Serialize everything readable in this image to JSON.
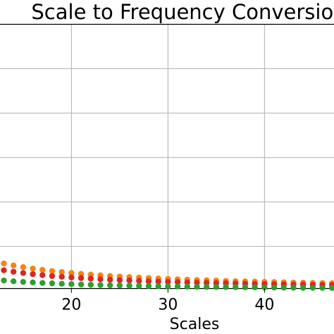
{
  "chart_data": {
    "type": "scatter",
    "title": "Scale to Frequency Conversion",
    "xlabel": "Scales",
    "ylabel": "",
    "xlim": [
      12.6,
      47.2
    ],
    "ylim": [
      0.005,
      0.6
    ],
    "x_ticks": [
      20,
      30,
      40
    ],
    "y_gridlines": [
      0.1,
      0.2,
      0.3,
      0.4,
      0.5,
      0.6
    ],
    "grid": true,
    "legend": "none",
    "series": [
      {
        "color": "#ff7f0e",
        "x": [
          13,
          14,
          15,
          16,
          17,
          18,
          19,
          20,
          21,
          22,
          23,
          24,
          25,
          26,
          27,
          28,
          29,
          30,
          31,
          32,
          33,
          34,
          35,
          36,
          37,
          38,
          39,
          40,
          41,
          42,
          43,
          44,
          45,
          46,
          47
        ],
        "y": [
          0.0615,
          0.0571,
          0.0533,
          0.05,
          0.0471,
          0.0444,
          0.0421,
          0.04,
          0.0381,
          0.0364,
          0.0348,
          0.0333,
          0.032,
          0.0308,
          0.0296,
          0.0286,
          0.0276,
          0.0267,
          0.0258,
          0.025,
          0.0242,
          0.0235,
          0.0229,
          0.0222,
          0.0216,
          0.0211,
          0.0205,
          0.02,
          0.0195,
          0.019,
          0.0186,
          0.0182,
          0.0178,
          0.0174,
          0.017
        ]
      },
      {
        "color": "#d62728",
        "x": [
          13,
          14,
          15,
          16,
          17,
          18,
          19,
          20,
          21,
          22,
          23,
          24,
          25,
          26,
          27,
          28,
          29,
          30,
          31,
          32,
          33,
          34,
          35,
          36,
          37,
          38,
          39,
          40,
          41,
          42,
          43,
          44,
          45,
          46,
          47
        ],
        "y": [
          0.0462,
          0.0429,
          0.04,
          0.0375,
          0.0353,
          0.0333,
          0.0316,
          0.03,
          0.0286,
          0.0273,
          0.0261,
          0.025,
          0.024,
          0.0231,
          0.0222,
          0.0214,
          0.0207,
          0.02,
          0.0194,
          0.0188,
          0.0182,
          0.0176,
          0.0171,
          0.0167,
          0.0162,
          0.0158,
          0.0154,
          0.015,
          0.0146,
          0.0143,
          0.014,
          0.0136,
          0.0133,
          0.013,
          0.0128
        ]
      },
      {
        "color": "#2ca02c",
        "x": [
          13,
          14,
          15,
          16,
          17,
          18,
          19,
          20,
          21,
          22,
          23,
          24,
          25,
          26,
          27,
          28,
          29,
          30,
          31,
          32,
          33,
          34,
          35,
          36,
          37,
          38,
          39,
          40,
          41,
          42,
          43,
          44,
          45,
          46,
          47
        ],
        "y": [
          0.0231,
          0.0214,
          0.02,
          0.0188,
          0.0176,
          0.0167,
          0.0158,
          0.015,
          0.0143,
          0.0136,
          0.013,
          0.0125,
          0.012,
          0.0115,
          0.0111,
          0.0107,
          0.0103,
          0.01,
          0.0097,
          0.0094,
          0.0091,
          0.0088,
          0.0086,
          0.0083,
          0.0081,
          0.0079,
          0.0077,
          0.0075,
          0.0073,
          0.0071,
          0.007,
          0.0068,
          0.0067,
          0.0065,
          0.0064
        ]
      }
    ]
  }
}
